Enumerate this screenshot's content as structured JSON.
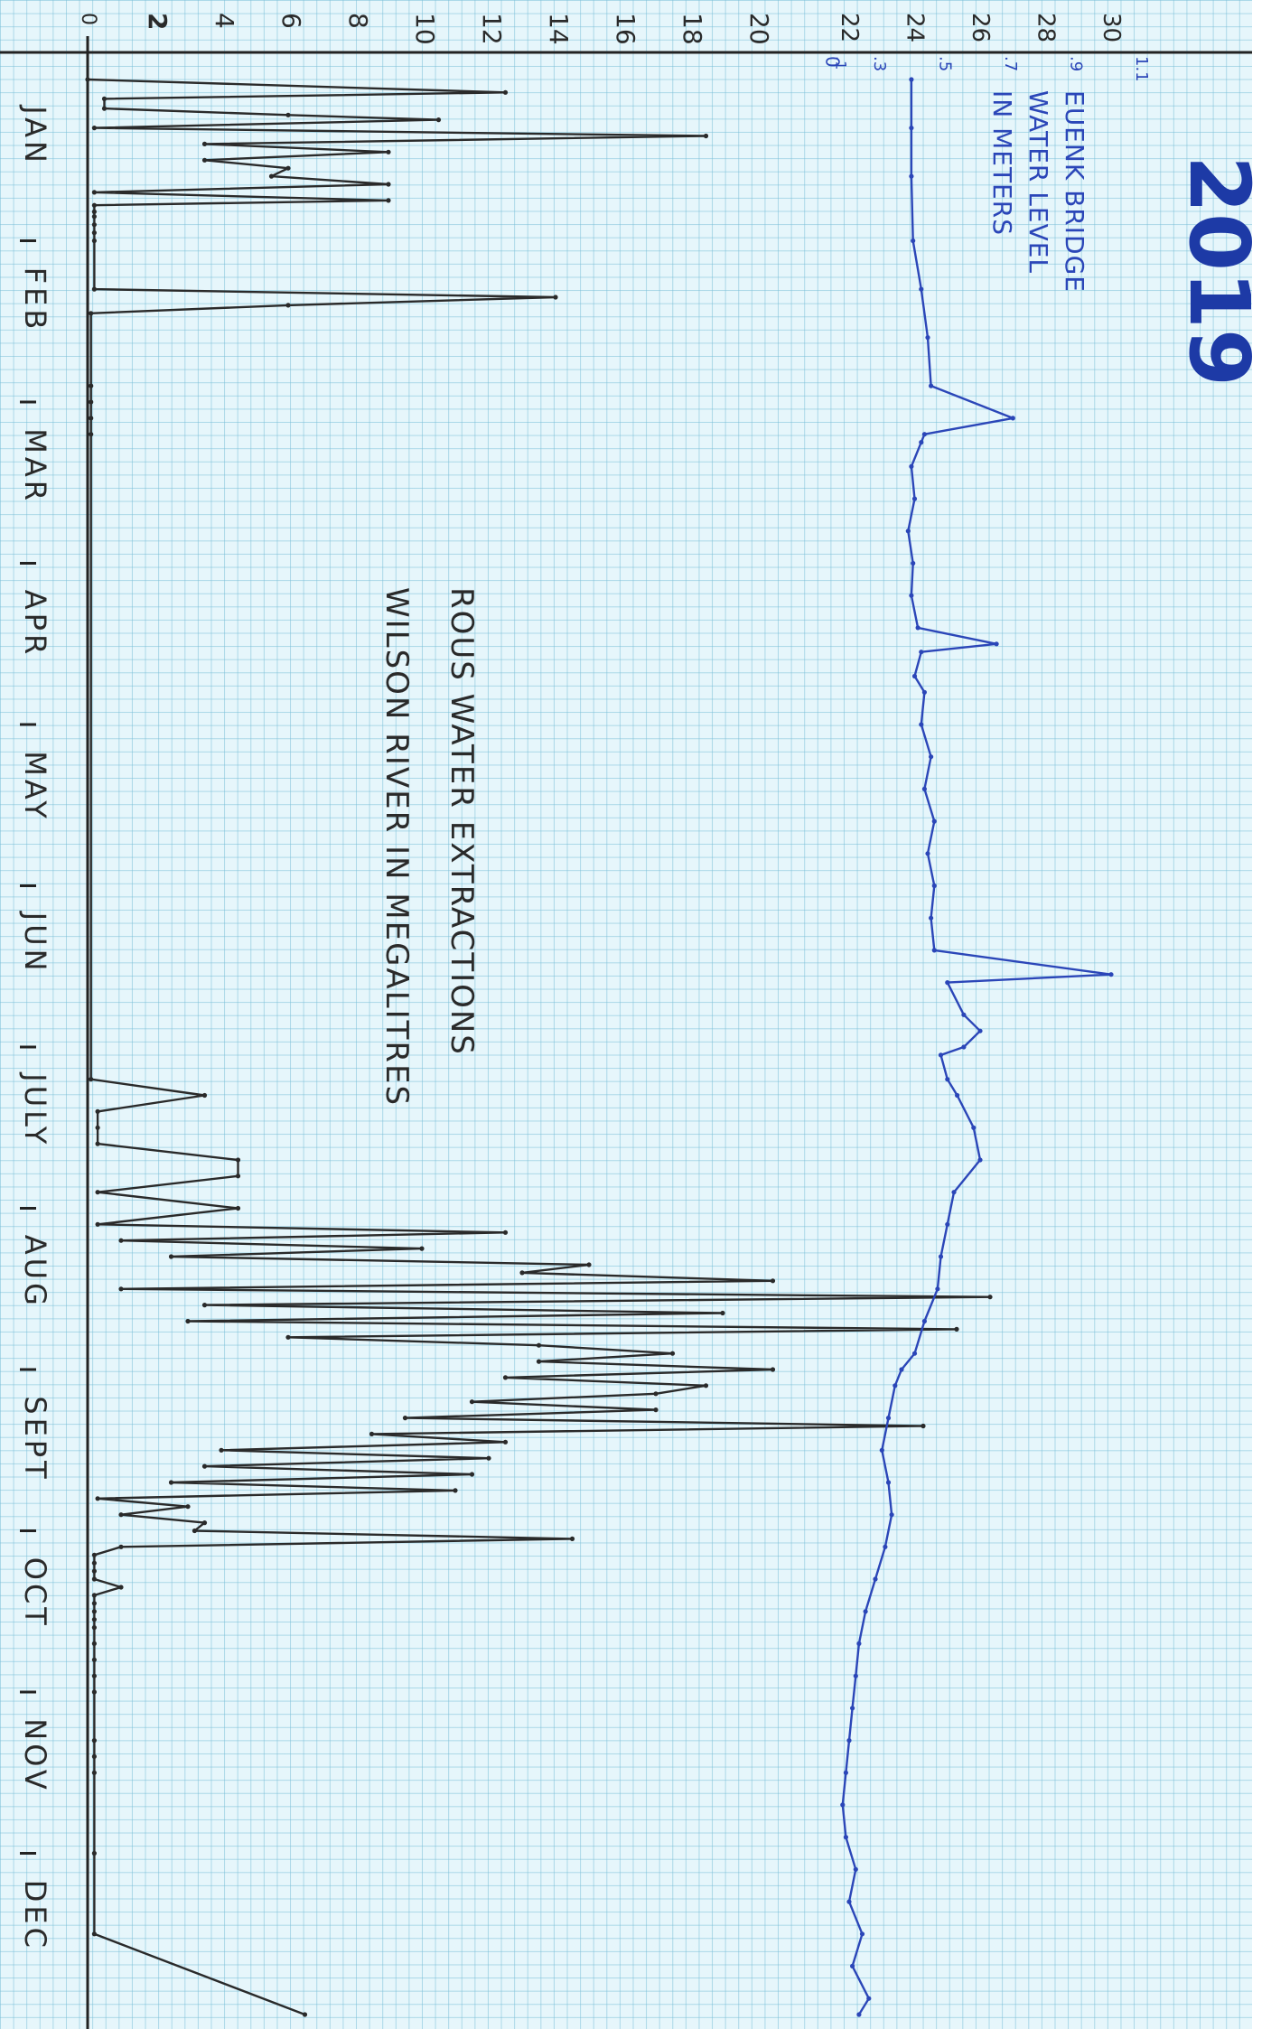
{
  "chart_data": {
    "type": "line",
    "title": "2019",
    "x_axis": {
      "categories": [
        "JAN",
        "FEB",
        "MAR",
        "APR",
        "MAY",
        "JUN",
        "JULY",
        "AUG",
        "SEPT",
        "OCT",
        "NOV",
        "DEC"
      ]
    },
    "extraction_axis": {
      "ticks": [
        0,
        2,
        4,
        6,
        8,
        10,
        12,
        14,
        16,
        18,
        20
      ],
      "range": [
        0,
        20
      ]
    },
    "level_axis": {
      "ticks": [
        "22",
        "24",
        "26",
        "28",
        "30"
      ],
      "minor_ticks": [
        ".3",
        ".5",
        ".7",
        ".9",
        "1.1"
      ],
      "zero_label": "0",
      "small_label": ".1",
      "range": [
        21,
        30.5
      ]
    },
    "series": [
      {
        "name": "ROUS WATER EXTRACTIONS WILSON RIVER IN MEGALITRES",
        "color": "#2a2a2a",
        "x": [
          0.0,
          0.08,
          0.12,
          0.18,
          0.22,
          0.25,
          0.3,
          0.35,
          0.4,
          0.45,
          0.5,
          0.55,
          0.6,
          0.65,
          0.7,
          0.75,
          0.78,
          0.82,
          0.85,
          0.9,
          0.95,
          1.0,
          1.3,
          1.35,
          1.4,
          1.45,
          1.9,
          2.0,
          2.1,
          2.2,
          6.2,
          6.3,
          6.4,
          6.5,
          6.6,
          6.7,
          6.8,
          6.9,
          7.0,
          7.1,
          7.15,
          7.2,
          7.25,
          7.3,
          7.35,
          7.4,
          7.45,
          7.5,
          7.55,
          7.6,
          7.65,
          7.7,
          7.75,
          7.8,
          7.85,
          7.9,
          7.95,
          8.0,
          8.05,
          8.1,
          8.15,
          8.2,
          8.25,
          8.3,
          8.35,
          8.4,
          8.45,
          8.5,
          8.55,
          8.6,
          8.65,
          8.7,
          8.75,
          8.8,
          8.85,
          8.9,
          8.95,
          9.0,
          9.05,
          9.1,
          9.15,
          9.2,
          9.25,
          9.3,
          9.35,
          9.4,
          9.45,
          9.5,
          9.55,
          9.6,
          9.7,
          9.8,
          9.9,
          10.0,
          10.3,
          10.4,
          10.5,
          11.0,
          11.5,
          12.0
        ],
        "values": [
          0,
          12.5,
          0.5,
          0.5,
          6,
          10.5,
          0.2,
          18.5,
          3.5,
          9,
          3.5,
          6,
          5.5,
          9,
          0.2,
          9,
          0.2,
          0.2,
          0.2,
          0.2,
          0.2,
          0.2,
          0.2,
          14,
          6,
          0.1,
          0.1,
          0.1,
          0.1,
          0.1,
          0.1,
          3.5,
          0.3,
          0.3,
          0.3,
          4.5,
          4.5,
          0.3,
          4.5,
          0.3,
          12.5,
          1.0,
          10.0,
          2.5,
          15.0,
          13.0,
          20.5,
          1.0,
          27.0,
          3.5,
          19.0,
          3.0,
          26.0,
          6.0,
          13.5,
          17.5,
          13.5,
          20.5,
          12.5,
          18.5,
          17.0,
          11.5,
          17.0,
          9.5,
          25.0,
          8.5,
          12.5,
          4.0,
          12.0,
          3.5,
          11.5,
          2.5,
          11.0,
          0.3,
          3.0,
          1.0,
          3.5,
          3.2,
          14.5,
          1.0,
          0.2,
          0.2,
          0.2,
          0.2,
          1.0,
          0.2,
          0.2,
          0.2,
          0.2,
          0.2,
          0.2,
          0.2,
          0.2,
          0.2,
          0.2,
          0.2,
          0.2,
          0.2,
          0.2,
          6.5
        ]
      },
      {
        "name": "EUENK BRIDGE WATER LEVEL IN METERS",
        "color": "#2b46b8",
        "x": [
          0.0,
          0.3,
          0.6,
          1.0,
          1.3,
          1.6,
          1.9,
          2.1,
          2.2,
          2.25,
          2.4,
          2.6,
          2.8,
          3.0,
          3.2,
          3.4,
          3.5,
          3.55,
          3.7,
          3.8,
          4.0,
          4.2,
          4.4,
          4.6,
          4.8,
          5.0,
          5.2,
          5.4,
          5.55,
          5.6,
          5.8,
          5.9,
          6.0,
          6.05,
          6.2,
          6.3,
          6.5,
          6.7,
          6.9,
          7.1,
          7.3,
          7.5,
          7.7,
          7.9,
          8.0,
          8.1,
          8.3,
          8.5,
          8.7,
          8.9,
          9.1,
          9.3,
          9.5,
          9.7,
          9.9,
          10.1,
          10.3,
          10.5,
          10.7,
          10.9,
          11.1,
          11.3,
          11.5,
          11.7,
          11.9,
          12.0
        ],
        "values": [
          23.9,
          23.9,
          23.9,
          23.95,
          24.2,
          24.4,
          24.5,
          27.0,
          24.3,
          24.2,
          23.9,
          24.0,
          23.8,
          23.95,
          23.9,
          24.1,
          26.5,
          24.2,
          24.0,
          24.3,
          24.2,
          24.5,
          24.3,
          24.6,
          24.4,
          24.6,
          24.5,
          24.6,
          30.0,
          25.0,
          25.5,
          26.0,
          25.5,
          24.8,
          25.0,
          25.3,
          25.8,
          26.0,
          25.2,
          25.0,
          24.8,
          24.7,
          24.3,
          24.0,
          23.6,
          23.4,
          23.2,
          23.0,
          23.2,
          23.3,
          23.1,
          22.8,
          22.5,
          22.3,
          22.2,
          22.1,
          22.0,
          21.9,
          21.8,
          21.9,
          22.2,
          22.0,
          22.4,
          22.1,
          22.6,
          22.3
        ]
      }
    ],
    "annotations": {
      "extraction_label_line1": "ROUS WATER EXTRACTIONS",
      "extraction_label_line2": "WILSON RIVER IN MEGALITRES",
      "level_label_line1": "EUENK BRIDGE",
      "level_label_line2": "WATER LEVEL",
      "level_label_line3": "IN METERS"
    },
    "grid": true,
    "orientation": "rotated 90 degrees clockwise (time runs down the page)"
  }
}
